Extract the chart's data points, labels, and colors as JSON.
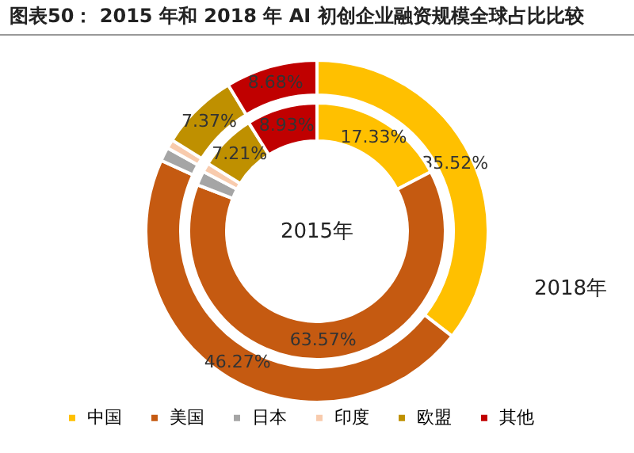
{
  "chart_data": {
    "type": "donut",
    "title": "图表50：  2015 年和 2018 年 AI 初创企业融资规模全球占比比较",
    "categories": [
      "中国",
      "美国",
      "日本",
      "印度",
      "欧盟",
      "其他"
    ],
    "colors": [
      "#ffc000",
      "#c55a11",
      "#a5a5a5",
      "#f8cbad",
      "#bf9000",
      "#c00000"
    ],
    "series": [
      {
        "name": "2018年",
        "values": [
          35.52,
          46.27,
          1.3,
          0.86,
          7.37,
          8.68
        ],
        "value_labels": [
          "35.52%",
          "46.27%",
          null,
          null,
          "7.37%",
          "8.68%"
        ]
      },
      {
        "name": "2015年",
        "values": [
          17.33,
          63.57,
          1.8,
          1.16,
          7.21,
          8.93
        ],
        "value_labels": [
          "17.33%",
          "63.57%",
          null,
          null,
          "7.21%",
          "8.93%"
        ]
      }
    ],
    "legend": "bottom"
  }
}
